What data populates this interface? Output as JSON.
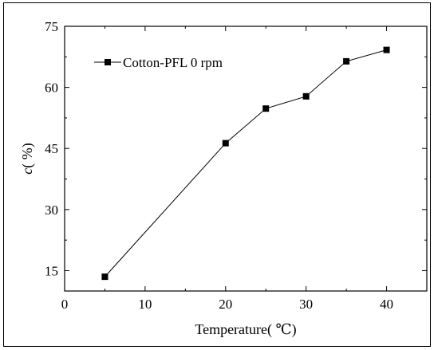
{
  "chart_data": {
    "type": "line",
    "title": "",
    "xlabel": "Temperature( ℃)",
    "ylabel_var": "c",
    "ylabel_unit": "( %)",
    "xlim": [
      0,
      45
    ],
    "ylim": [
      10,
      75
    ],
    "x_ticks": [
      0,
      10,
      20,
      30,
      40
    ],
    "y_ticks": [
      15,
      30,
      45,
      60,
      75
    ],
    "grid": false,
    "legend_position": "top-left",
    "series": [
      {
        "name": "Cotton-PFL 0 rpm",
        "color": "#000000",
        "marker": "square",
        "x": [
          5,
          20,
          25,
          30,
          35,
          40
        ],
        "y": [
          13.5,
          46.3,
          54.8,
          57.8,
          66.4,
          69.2
        ]
      }
    ]
  }
}
